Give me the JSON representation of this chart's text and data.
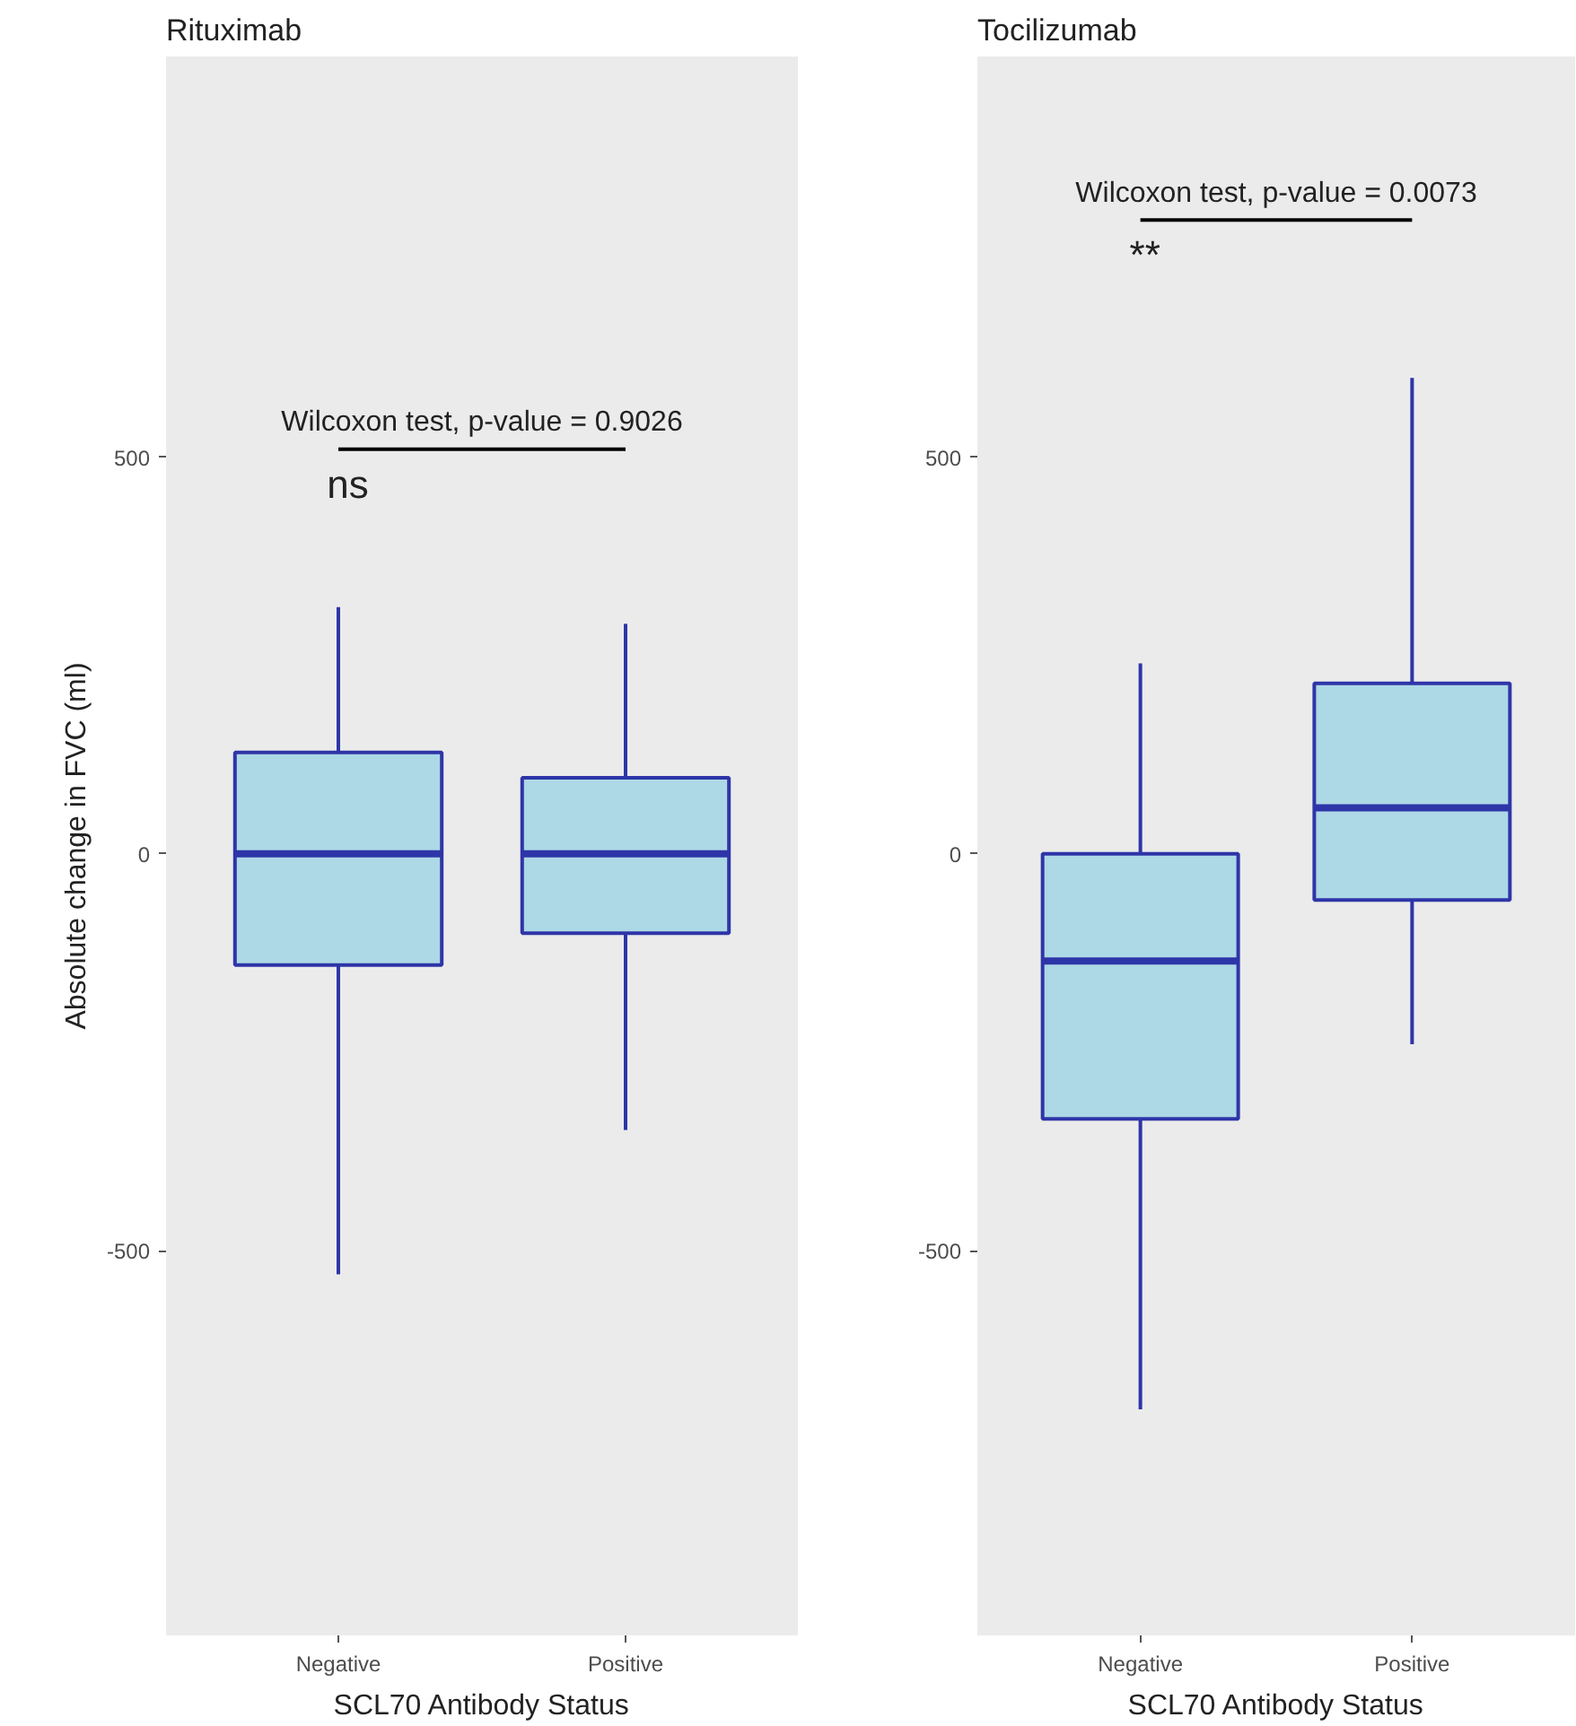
{
  "chart_data": [
    {
      "type": "box",
      "title": "Rituximab",
      "xlabel": "SCL70 Antibody Status",
      "ylabel": "Absolute change in FVC (ml)",
      "categories": [
        "Negative",
        "Positive"
      ],
      "series": [
        {
          "color": "#add8e6",
          "boxes": [
            {
              "low": -530,
              "q1": -140,
              "median": 0,
              "q3": 128,
              "high": 311
            },
            {
              "low": -348,
              "q1": -100,
              "median": 0,
              "q3": 96,
              "high": 290
            }
          ]
        }
      ],
      "ylim": [
        -985,
        1005
      ],
      "yticks": [
        -500,
        0,
        500
      ],
      "grid": false,
      "annotations": [
        "Wilcoxon test, p-value = 0.9026",
        "ns"
      ]
    },
    {
      "type": "box",
      "title": "Tocilizumab",
      "xlabel": "SCL70 Antibody Status",
      "categories": [
        "Negative",
        "Positive"
      ],
      "series": [
        {
          "color": "#add8e6",
          "boxes": [
            {
              "low": -700,
              "q1": -334,
              "median": -135,
              "q3": 0,
              "high": 240
            },
            {
              "low": -240,
              "q1": -58,
              "median": 58,
              "q3": 215,
              "high": 600
            }
          ]
        }
      ],
      "ylim": [
        -985,
        1005
      ],
      "yticks": [
        -500,
        0,
        500
      ],
      "grid": false,
      "annotations": [
        "Wilcoxon test, p-value = 0.0073",
        "**"
      ]
    }
  ]
}
